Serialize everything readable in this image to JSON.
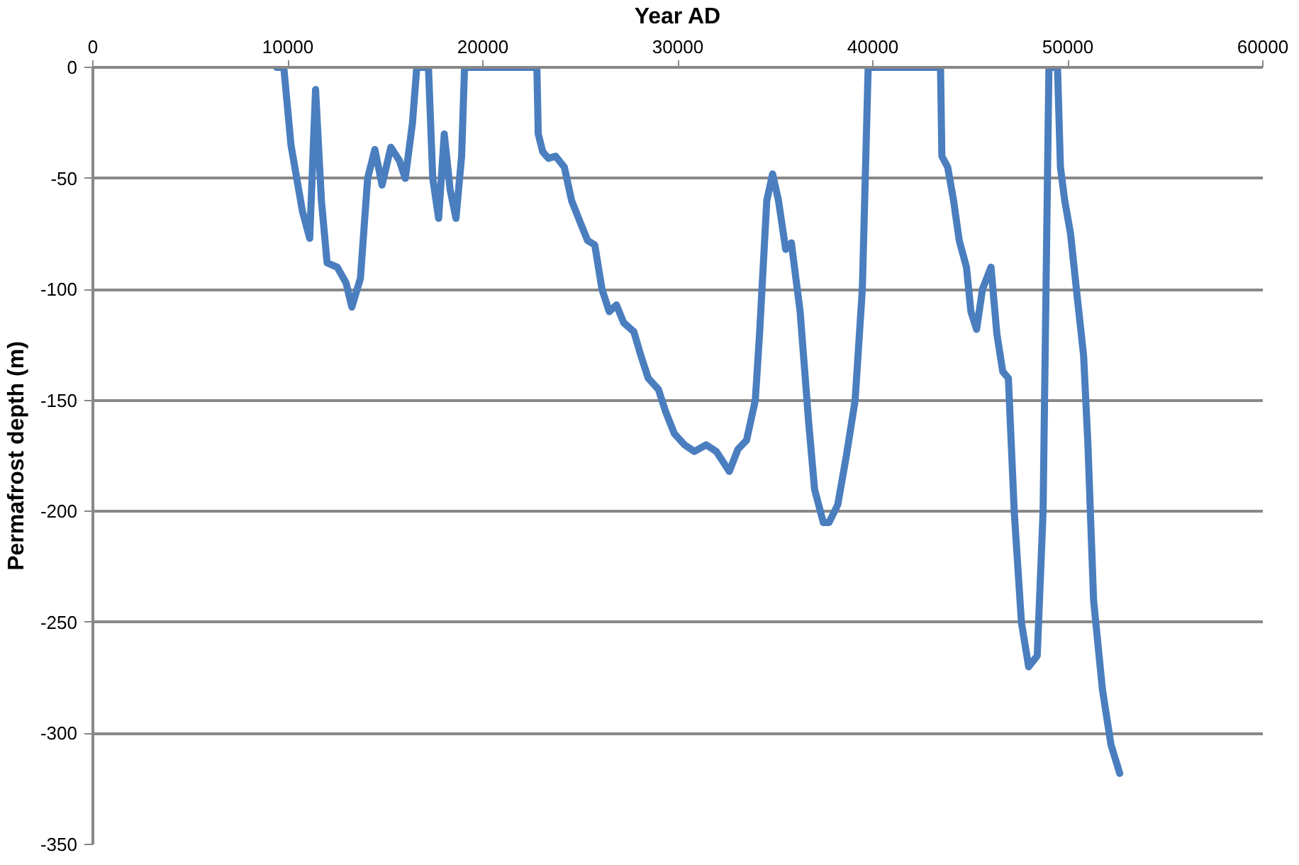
{
  "chart_data": {
    "type": "line",
    "xlabel": "Year AD",
    "ylabel": "Permafrost depth (m)",
    "xlim": [
      0,
      60000
    ],
    "xticks": [
      0,
      10000,
      20000,
      30000,
      40000,
      50000,
      60000
    ],
    "ylim": [
      -350,
      0
    ],
    "yticks": [
      -350,
      -300,
      -250,
      -200,
      -150,
      -100,
      -50,
      0
    ],
    "grid": "y",
    "series": [
      {
        "color": "#4a7ebf",
        "x": [
          9420,
          9790,
          10160,
          10750,
          11120,
          11420,
          11720,
          12010,
          12530,
          12980,
          13280,
          13720,
          14090,
          14460,
          14830,
          15280,
          15720,
          16020,
          16390,
          16610,
          17210,
          17430,
          17730,
          18020,
          18320,
          18620,
          18910,
          19060,
          22770,
          22840,
          23070,
          23360,
          23730,
          24180,
          24550,
          25000,
          25370,
          25740,
          26110,
          26480,
          26850,
          27220,
          27740,
          28110,
          28480,
          29000,
          29370,
          29820,
          30340,
          30850,
          31450,
          31970,
          32640,
          33080,
          33520,
          33970,
          34190,
          34560,
          34860,
          35160,
          35530,
          35820,
          36270,
          36710,
          37010,
          37460,
          37750,
          38200,
          38640,
          39090,
          39460,
          39610,
          39760,
          43470,
          43540,
          43840,
          44140,
          44430,
          44800,
          45030,
          45320,
          45620,
          46060,
          46360,
          46660,
          46950,
          47250,
          47620,
          47990,
          48430,
          48730,
          48880,
          49030,
          49470,
          49620,
          49840,
          50140,
          50440,
          50810,
          51030,
          51320,
          51770,
          52210,
          52660
        ],
        "values": [
          0,
          0,
          -35,
          -65,
          -77,
          -10,
          -60,
          -88,
          -90,
          -97,
          -108,
          -95,
          -50,
          -37,
          -53,
          -36,
          -42,
          -50,
          -25,
          0,
          0,
          -50,
          -68,
          -30,
          -55,
          -68,
          -40,
          0,
          0,
          -30,
          -38,
          -41,
          -40,
          -45,
          -60,
          -70,
          -78,
          -80,
          -100,
          -110,
          -107,
          -115,
          -119,
          -130,
          -140,
          -145,
          -155,
          -165,
          -170,
          -173,
          -170,
          -173,
          -182,
          -172,
          -168,
          -150,
          -120,
          -60,
          -48,
          -60,
          -82,
          -79,
          -110,
          -160,
          -190,
          -205,
          -205,
          -197,
          -175,
          -150,
          -100,
          -50,
          0,
          0,
          -40,
          -45,
          -60,
          -78,
          -90,
          -110,
          -118,
          -100,
          -90,
          -120,
          -137,
          -140,
          -200,
          -250,
          -270,
          -265,
          -200,
          -100,
          0,
          0,
          -45,
          -60,
          -75,
          -100,
          -130,
          -170,
          -240,
          -280,
          -305,
          -318
        ]
      }
    ]
  }
}
